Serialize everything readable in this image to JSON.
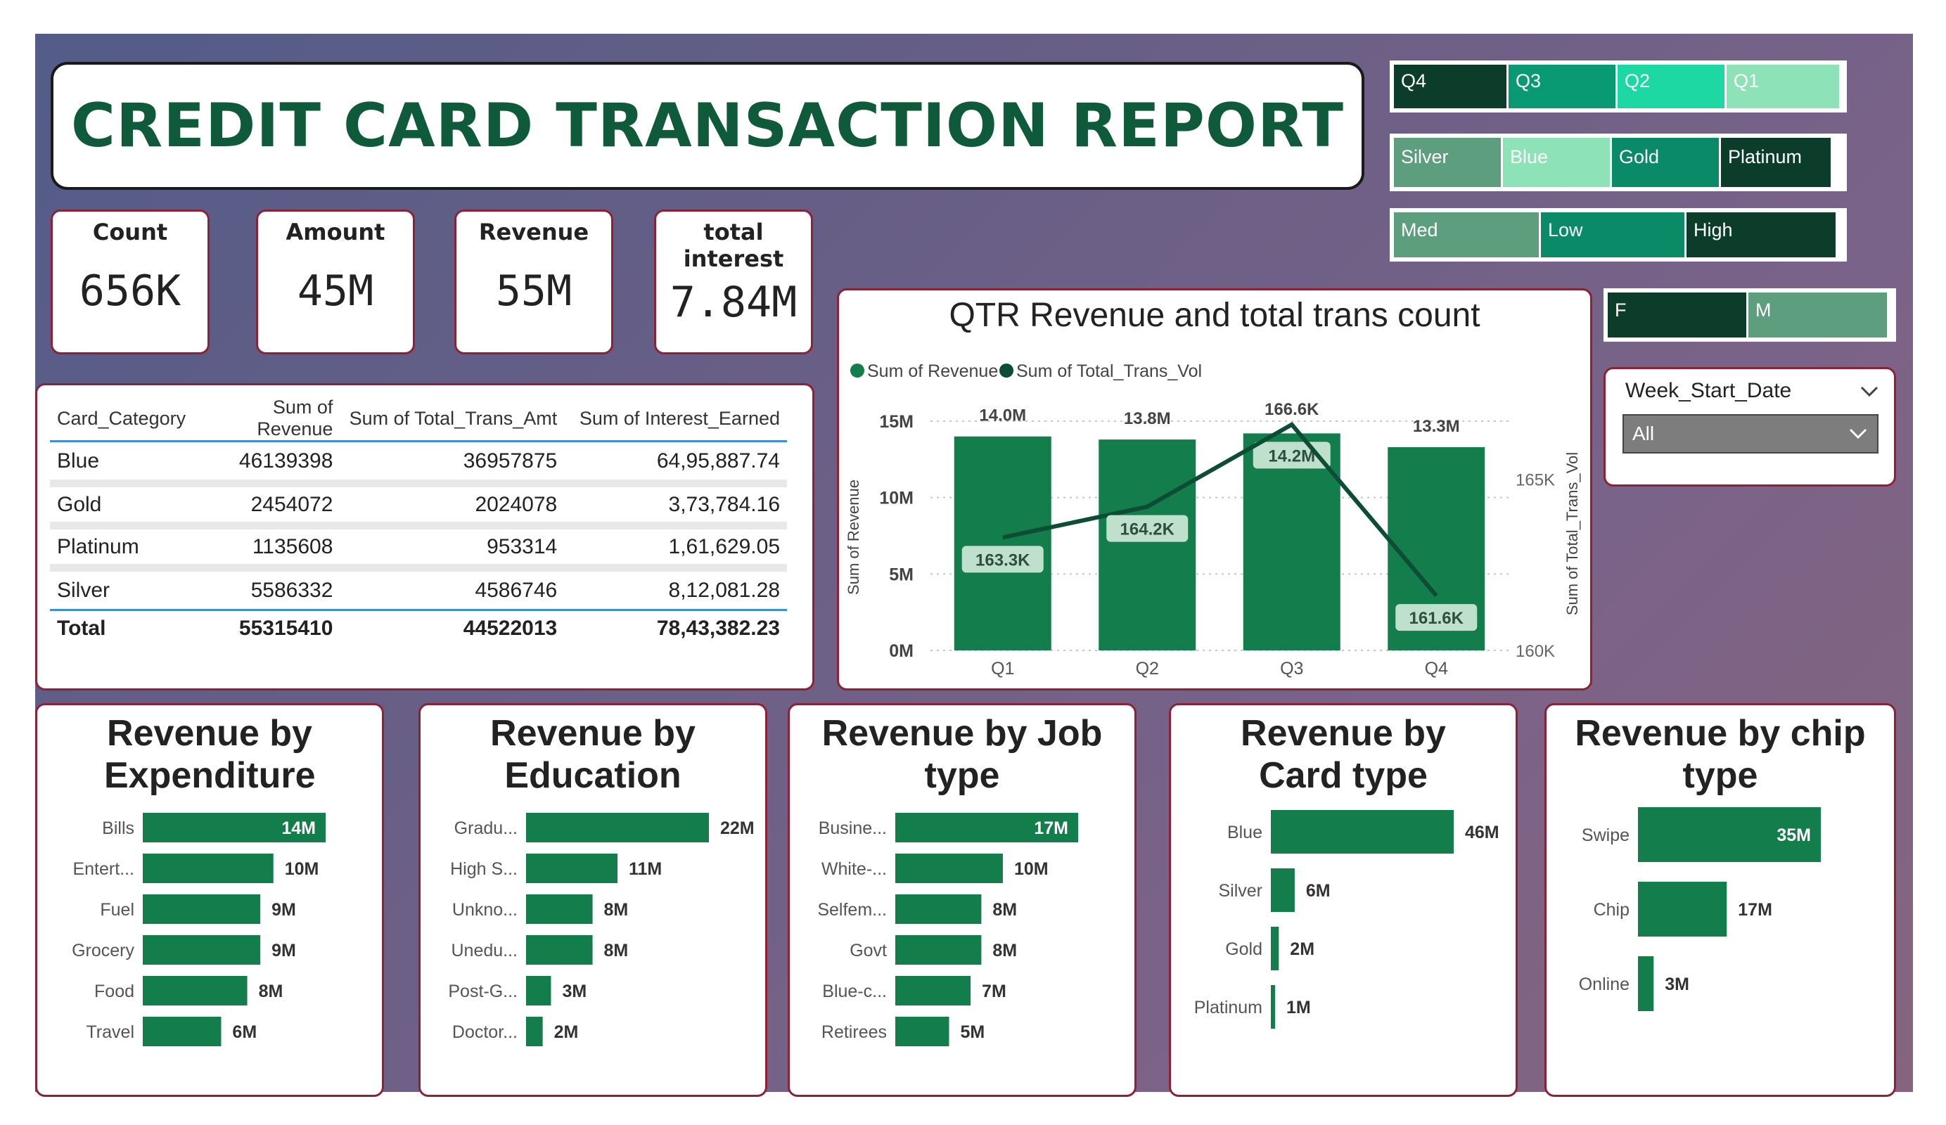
{
  "title": "CREDIT CARD TRANSACTION REPORT",
  "kpis": [
    {
      "label": "Count",
      "value": "656K"
    },
    {
      "label": "Amount",
      "value": "45M"
    },
    {
      "label": "Revenue",
      "value": "55M"
    },
    {
      "label": "total interest",
      "value": "7.84M"
    }
  ],
  "slicers": {
    "quarter": [
      "Q4",
      "Q3",
      "Q2",
      "Q1"
    ],
    "card": [
      "Silver",
      "Blue",
      "Gold",
      "Platinum"
    ],
    "income": [
      "Med",
      "Low",
      "High"
    ],
    "gender": [
      "F",
      "M"
    ],
    "week": {
      "label": "Week_Start_Date",
      "value": "All"
    }
  },
  "table": {
    "headers": [
      "Card_Category",
      "Sum of Revenue",
      "Sum of Total_Trans_Amt",
      "Sum of Interest_Earned"
    ],
    "rows": [
      [
        "Blue",
        "46139398",
        "36957875",
        "64,95,887.74"
      ],
      [
        "Gold",
        "2454072",
        "2024078",
        "3,73,784.16"
      ],
      [
        "Platinum",
        "1135608",
        "953314",
        "1,61,629.05"
      ],
      [
        "Silver",
        "5586332",
        "4586746",
        "8,12,081.28"
      ]
    ],
    "total": [
      "Total",
      "55315410",
      "44522013",
      "78,43,382.23"
    ]
  },
  "colors": {
    "bar": "#137d4c",
    "line": "#0d4d35",
    "dark": "#0b3d2a",
    "teal": "#0a9a73",
    "mint": "#1ed8a3",
    "light": "#8de3b7",
    "sage": "#5c9e7d"
  },
  "chart_data": [
    {
      "type": "bar",
      "title": "QTR Revenue and total trans count",
      "legend": [
        "Sum of Revenue",
        "Sum of Total_Trans_Vol"
      ],
      "ylabel": "Sum of Revenue",
      "y2label": "Sum of Total_Trans_Vol",
      "categories": [
        "Q1",
        "Q2",
        "Q3",
        "Q4"
      ],
      "series": [
        {
          "name": "Sum of Revenue",
          "type": "bar",
          "values": [
            14.0,
            13.8,
            14.2,
            13.3
          ],
          "labels": [
            "14.0M",
            "13.8M",
            "14.2M",
            "13.3M"
          ]
        },
        {
          "name": "Sum of Total_Trans_Vol",
          "type": "line",
          "values": [
            163.3,
            164.2,
            166.6,
            161.6
          ],
          "labels": [
            "163.3K",
            "164.2K",
            "166.6K",
            "161.6K"
          ]
        }
      ],
      "yticks": [
        "15M",
        "10M",
        "5M",
        "0M"
      ],
      "ylim": [
        0,
        15
      ],
      "y2ticks": [
        "165K",
        "160K"
      ],
      "y2lim": [
        160,
        166.7
      ]
    },
    {
      "type": "bar",
      "title": "Revenue by Expenditure",
      "categories": [
        "Bills",
        "Entert...",
        "Fuel",
        "Grocery",
        "Food",
        "Travel"
      ],
      "values": [
        14,
        10,
        9,
        9,
        8,
        6
      ],
      "labels": [
        "14M",
        "10M",
        "9M",
        "9M",
        "8M",
        "6M"
      ],
      "max": 14
    },
    {
      "type": "bar",
      "title": "Revenue by Education",
      "categories": [
        "Gradu...",
        "High S...",
        "Unkno...",
        "Unedu...",
        "Post-G...",
        "Doctor..."
      ],
      "values": [
        22,
        11,
        8,
        8,
        3,
        2
      ],
      "labels": [
        "22M",
        "11M",
        "8M",
        "8M",
        "3M",
        "2M"
      ],
      "max": 22
    },
    {
      "type": "bar",
      "title": "Revenue by Job type",
      "categories": [
        "Busine...",
        "White-...",
        "Selfem...",
        "Govt",
        "Blue-c...",
        "Retirees"
      ],
      "values": [
        17,
        10,
        8,
        8,
        7,
        5
      ],
      "labels": [
        "17M",
        "10M",
        "8M",
        "8M",
        "7M",
        "5M"
      ],
      "max": 17
    },
    {
      "type": "bar",
      "title": "Revenue by Card type",
      "categories": [
        "Blue",
        "Silver",
        "Gold",
        "Platinum"
      ],
      "values": [
        46,
        6,
        2,
        1
      ],
      "labels": [
        "46M",
        "6M",
        "2M",
        "1M"
      ],
      "max": 46
    },
    {
      "type": "bar",
      "title": "Revenue by chip type",
      "categories": [
        "Swipe",
        "Chip",
        "Online"
      ],
      "values": [
        35,
        17,
        3
      ],
      "labels": [
        "35M",
        "17M",
        "3M"
      ],
      "max": 35
    }
  ]
}
